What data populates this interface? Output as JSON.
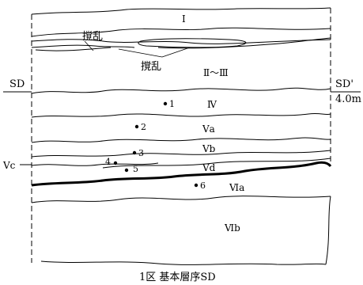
{
  "layers": {
    "I": "Ⅰ",
    "II_III": "Ⅱ～Ⅲ",
    "IV": "Ⅳ",
    "Va": "Ⅴa",
    "Vb": "Ⅴb",
    "Vc": "Ⅴc",
    "Vd": "Ⅴd",
    "VIa": "Ⅵa",
    "VIb": "Ⅵb"
  },
  "disturbance_labels": [
    "撹乱",
    "撹乱"
  ],
  "samples": [
    "1",
    "2",
    "3",
    "4",
    "5",
    "6"
  ],
  "section_left": "SD",
  "section_right": "SD'",
  "depth_label": "4.0m",
  "caption": "1区 基本層序SD"
}
